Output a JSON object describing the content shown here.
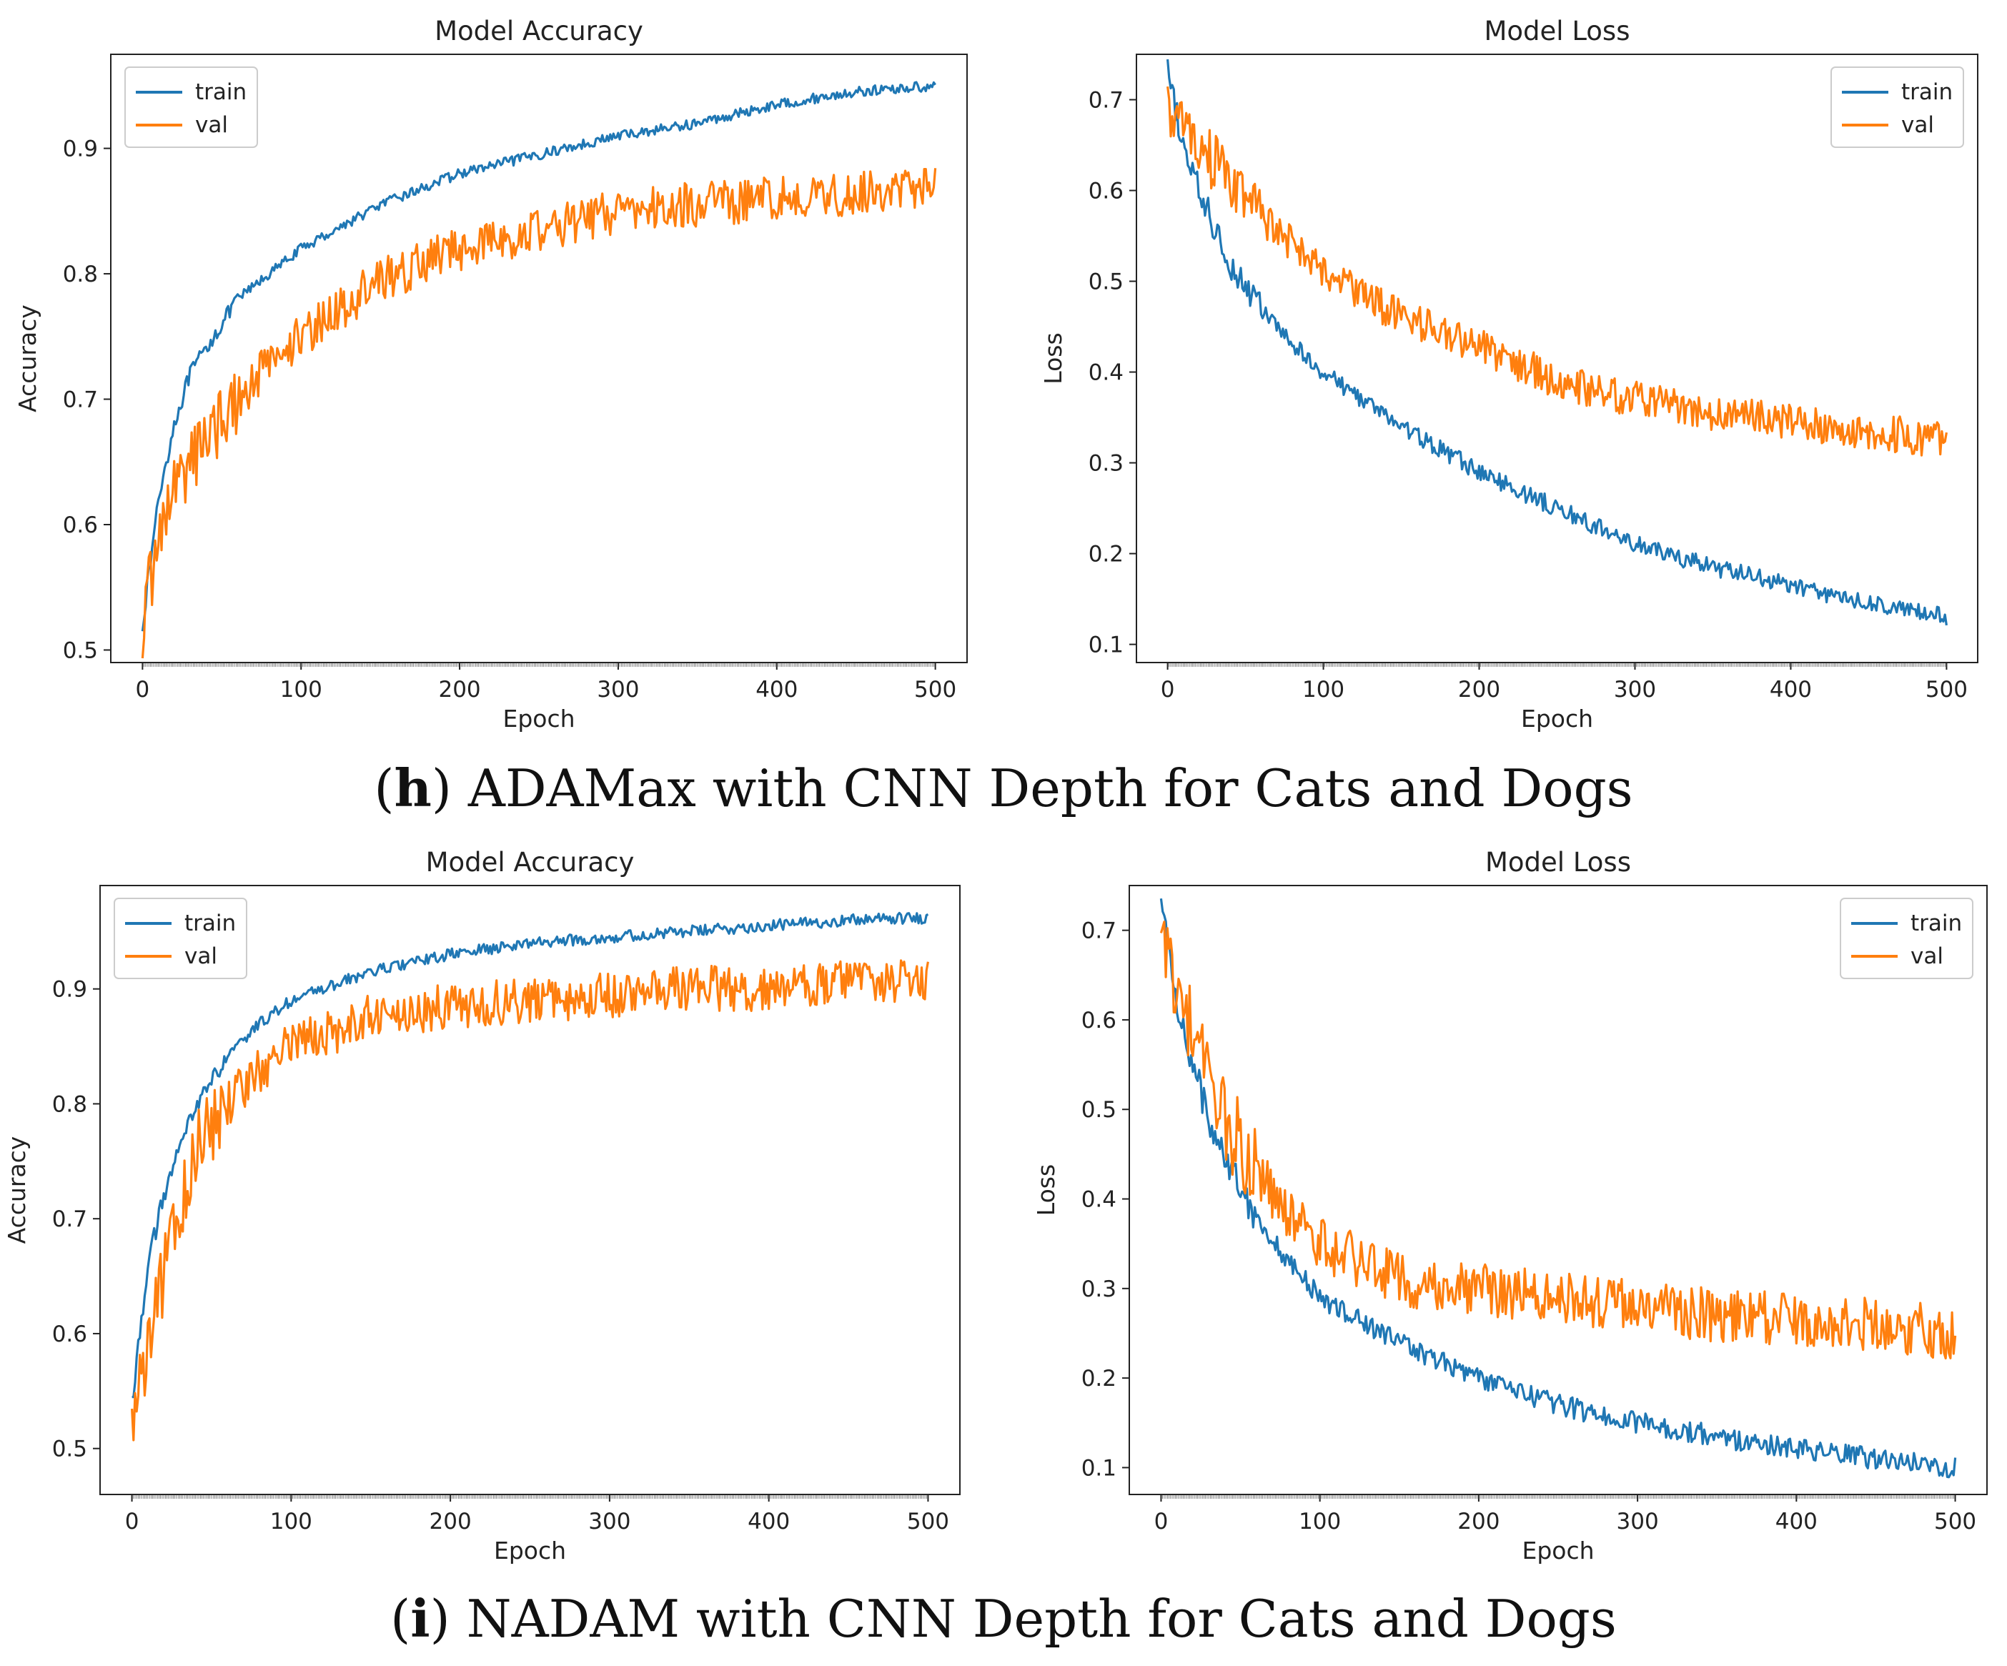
{
  "colors": {
    "train": "#1f77b4",
    "val": "#ff7f0e"
  },
  "captions": [
    {
      "letter": "h",
      "text": "ADAMax with CNN Depth for Cats and Dogs"
    },
    {
      "letter": "i",
      "text": "NADAM with CNN Depth for Cats and Dogs"
    }
  ],
  "chart_data": [
    {
      "type": "line",
      "title": "Model Accuracy",
      "xlabel": "Epoch",
      "ylabel": "Accuracy",
      "xlim": [
        -20,
        520
      ],
      "ylim": [
        0.49,
        0.975
      ],
      "xticks": [
        0,
        100,
        200,
        300,
        400,
        500
      ],
      "yticks": [
        0.5,
        0.6,
        0.7,
        0.8,
        0.9
      ],
      "legend": "top-left",
      "series": [
        {
          "name": "train",
          "x": [
            0,
            10,
            20,
            30,
            40,
            60,
            80,
            100,
            150,
            200,
            250,
            300,
            350,
            400,
            450,
            500
          ],
          "y": [
            0.52,
            0.62,
            0.68,
            0.72,
            0.74,
            0.78,
            0.8,
            0.82,
            0.855,
            0.88,
            0.895,
            0.91,
            0.92,
            0.935,
            0.945,
            0.95
          ],
          "noise": 0.004
        },
        {
          "name": "val",
          "x": [
            0,
            10,
            20,
            30,
            40,
            60,
            80,
            100,
            150,
            200,
            250,
            300,
            350,
            400,
            450,
            500
          ],
          "y": [
            0.52,
            0.59,
            0.63,
            0.65,
            0.67,
            0.7,
            0.73,
            0.75,
            0.795,
            0.82,
            0.835,
            0.85,
            0.855,
            0.86,
            0.865,
            0.87
          ],
          "noise": 0.018
        }
      ]
    },
    {
      "type": "line",
      "title": "Model Loss",
      "xlabel": "Epoch",
      "ylabel": "Loss",
      "xlim": [
        -20,
        520
      ],
      "ylim": [
        0.08,
        0.75
      ],
      "xticks": [
        0,
        100,
        200,
        300,
        400,
        500
      ],
      "yticks": [
        0.1,
        0.2,
        0.3,
        0.4,
        0.5,
        0.6,
        0.7
      ],
      "legend": "top-right",
      "series": [
        {
          "name": "train",
          "x": [
            0,
            10,
            20,
            30,
            40,
            60,
            80,
            100,
            150,
            200,
            250,
            300,
            350,
            400,
            450,
            500
          ],
          "y": [
            0.73,
            0.65,
            0.6,
            0.56,
            0.52,
            0.47,
            0.43,
            0.4,
            0.34,
            0.29,
            0.25,
            0.21,
            0.185,
            0.165,
            0.145,
            0.13
          ],
          "noise": 0.01
        },
        {
          "name": "val",
          "x": [
            0,
            10,
            20,
            30,
            40,
            60,
            80,
            100,
            150,
            200,
            250,
            300,
            350,
            400,
            450,
            500
          ],
          "y": [
            0.69,
            0.67,
            0.65,
            0.63,
            0.61,
            0.57,
            0.54,
            0.51,
            0.46,
            0.43,
            0.39,
            0.37,
            0.355,
            0.345,
            0.335,
            0.325
          ],
          "noise": 0.02
        }
      ]
    },
    {
      "type": "line",
      "title": "Model Accuracy",
      "xlabel": "Epoch",
      "ylabel": "Accuracy",
      "xlim": [
        -20,
        520
      ],
      "ylim": [
        0.46,
        0.99
      ],
      "xticks": [
        0,
        100,
        200,
        300,
        400,
        500
      ],
      "yticks": [
        0.5,
        0.6,
        0.7,
        0.8,
        0.9
      ],
      "legend": "top-left",
      "series": [
        {
          "name": "train",
          "x": [
            0,
            10,
            20,
            30,
            40,
            60,
            80,
            100,
            150,
            200,
            250,
            300,
            350,
            400,
            450,
            500
          ],
          "y": [
            0.54,
            0.66,
            0.72,
            0.76,
            0.8,
            0.84,
            0.87,
            0.89,
            0.915,
            0.93,
            0.94,
            0.945,
            0.95,
            0.955,
            0.96,
            0.962
          ],
          "noise": 0.005
        },
        {
          "name": "val",
          "x": [
            0,
            10,
            20,
            30,
            40,
            60,
            80,
            100,
            150,
            200,
            250,
            300,
            350,
            400,
            450,
            500
          ],
          "y": [
            0.52,
            0.59,
            0.65,
            0.71,
            0.76,
            0.8,
            0.83,
            0.85,
            0.875,
            0.885,
            0.89,
            0.895,
            0.9,
            0.9,
            0.905,
            0.905
          ],
          "noise": 0.02
        }
      ]
    },
    {
      "type": "line",
      "title": "Model Loss",
      "xlabel": "Epoch",
      "ylabel": "Loss",
      "xlim": [
        -20,
        520
      ],
      "ylim": [
        0.07,
        0.75
      ],
      "xticks": [
        0,
        100,
        200,
        300,
        400,
        500
      ],
      "yticks": [
        0.1,
        0.2,
        0.3,
        0.4,
        0.5,
        0.6,
        0.7
      ],
      "legend": "top-right",
      "series": [
        {
          "name": "train",
          "x": [
            0,
            10,
            20,
            30,
            40,
            60,
            80,
            100,
            150,
            200,
            250,
            300,
            350,
            400,
            450,
            500
          ],
          "y": [
            0.73,
            0.62,
            0.55,
            0.49,
            0.45,
            0.38,
            0.33,
            0.29,
            0.24,
            0.2,
            0.17,
            0.15,
            0.135,
            0.12,
            0.11,
            0.1
          ],
          "noise": 0.012
        },
        {
          "name": "val",
          "x": [
            0,
            10,
            20,
            30,
            40,
            60,
            80,
            100,
            150,
            200,
            250,
            300,
            350,
            400,
            450,
            500
          ],
          "y": [
            0.69,
            0.64,
            0.58,
            0.53,
            0.49,
            0.43,
            0.38,
            0.35,
            0.31,
            0.3,
            0.29,
            0.28,
            0.27,
            0.265,
            0.26,
            0.25
          ],
          "noise": 0.03
        }
      ]
    }
  ]
}
